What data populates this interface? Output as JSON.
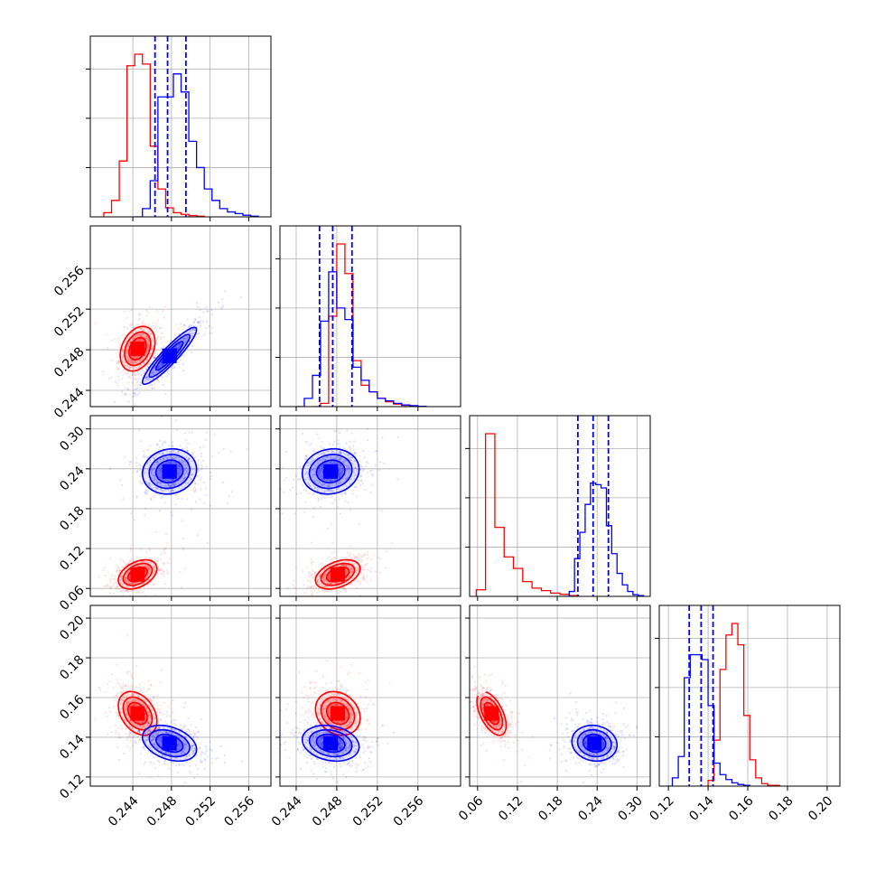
{
  "colors": {
    "red": "#ff0000",
    "blue": "#0000ff",
    "grid": "#b0b0b0",
    "axis": "#000000"
  },
  "chart_data": {
    "type": "corner",
    "grid": true,
    "series": [
      {
        "color": "#ff0000",
        "p0": {
          "hist": [
            [
              0.241,
              0.025
            ],
            [
              0.2418,
              0.1
            ],
            [
              0.2426,
              0.34
            ],
            [
              0.2434,
              0.92
            ],
            [
              0.2442,
              0.99
            ],
            [
              0.245,
              0.93
            ],
            [
              0.2458,
              0.43
            ],
            [
              0.2466,
              0.17
            ],
            [
              0.2474,
              0.055
            ],
            [
              0.2482,
              0.025
            ],
            [
              0.249,
              0.015
            ],
            [
              0.2498,
              0.008
            ],
            [
              0.2506,
              0.004
            ],
            [
              0.2514,
              0.0
            ]
          ]
        },
        "p1": {
          "hist": [
            [
              0.2456,
              0.0
            ],
            [
              0.2464,
              0.02
            ],
            [
              0.2472,
              0.55
            ],
            [
              0.248,
              0.99
            ],
            [
              0.2488,
              0.81
            ],
            [
              0.2496,
              0.28
            ],
            [
              0.2504,
              0.13
            ],
            [
              0.2512,
              0.09
            ],
            [
              0.252,
              0.05
            ],
            [
              0.2528,
              0.03
            ],
            [
              0.2536,
              0.015
            ],
            [
              0.2544,
              0.008
            ],
            [
              0.2552,
              0.005
            ],
            [
              0.256,
              0.002
            ],
            [
              0.2568,
              0.0
            ]
          ]
        },
        "p2": {
          "hist": [
            [
              0.058,
              0.04
            ],
            [
              0.072,
              0.99
            ],
            [
              0.086,
              0.42
            ],
            [
              0.1,
              0.24
            ],
            [
              0.114,
              0.17
            ],
            [
              0.128,
              0.09
            ],
            [
              0.142,
              0.05
            ],
            [
              0.156,
              0.035
            ],
            [
              0.17,
              0.02
            ],
            [
              0.184,
              0.012
            ],
            [
              0.198,
              0.005
            ],
            [
              0.212,
              0.0
            ]
          ]
        },
        "p3": {
          "hist": [
            [
              0.14,
              0.035
            ],
            [
              0.143,
              0.28
            ],
            [
              0.146,
              0.71
            ],
            [
              0.149,
              0.92
            ],
            [
              0.152,
              0.99
            ],
            [
              0.155,
              0.86
            ],
            [
              0.158,
              0.43
            ],
            [
              0.161,
              0.16
            ],
            [
              0.164,
              0.05
            ],
            [
              0.167,
              0.015
            ],
            [
              0.17,
              0.005
            ],
            [
              0.176,
              0.0
            ]
          ]
        },
        "cov": {
          "p0p1": [
            0.2445,
            0.2481,
            0.0009,
            0.0011,
            0.3
          ],
          "p0p2": [
            0.2445,
            0.081,
            0.001,
            0.011,
            0.4
          ],
          "p1p2": [
            0.2481,
            0.081,
            0.0011,
            0.011,
            0.4
          ],
          "p0p3": [
            0.2445,
            0.152,
            0.001,
            0.0055,
            -0.35
          ],
          "p1p3": [
            0.2481,
            0.152,
            0.0011,
            0.0055,
            -0.2
          ],
          "p2p3": [
            0.081,
            0.152,
            0.011,
            0.0055,
            -0.55
          ]
        }
      },
      {
        "color": "#0000ff",
        "p0": {
          "hist": [
            [
              0.2442,
              0.0
            ],
            [
              0.245,
              0.05
            ],
            [
              0.2458,
              0.22
            ],
            [
              0.2466,
              0.73
            ],
            [
              0.2474,
              0.73
            ],
            [
              0.2482,
              0.87
            ],
            [
              0.249,
              0.76
            ],
            [
              0.2498,
              0.46
            ],
            [
              0.2506,
              0.3
            ],
            [
              0.2514,
              0.17
            ],
            [
              0.2522,
              0.1
            ],
            [
              0.253,
              0.05
            ],
            [
              0.2538,
              0.03
            ],
            [
              0.2546,
              0.02
            ],
            [
              0.2554,
              0.01
            ],
            [
              0.2562,
              0.004
            ],
            [
              0.257,
              0.0
            ]
          ]
        },
        "p1": {
          "hist": [
            [
              0.244,
              0.0
            ],
            [
              0.2448,
              0.05
            ],
            [
              0.2456,
              0.19
            ],
            [
              0.2464,
              0.52
            ],
            [
              0.2472,
              0.82
            ],
            [
              0.248,
              0.6
            ],
            [
              0.2488,
              0.53
            ],
            [
              0.2496,
              0.24
            ],
            [
              0.2504,
              0.16
            ],
            [
              0.2512,
              0.09
            ],
            [
              0.252,
              0.05
            ],
            [
              0.2528,
              0.035
            ],
            [
              0.2536,
              0.02
            ],
            [
              0.2544,
              0.01
            ],
            [
              0.2552,
              0.006
            ],
            [
              0.256,
              0.002
            ],
            [
              0.2568,
              0.0
            ]
          ]
        },
        "p2": {
          "hist": [
            [
              0.19,
              0.0
            ],
            [
              0.198,
              0.03
            ],
            [
              0.206,
              0.23
            ],
            [
              0.214,
              0.39
            ],
            [
              0.222,
              0.56
            ],
            [
              0.23,
              0.69
            ],
            [
              0.238,
              0.68
            ],
            [
              0.246,
              0.66
            ],
            [
              0.254,
              0.43
            ],
            [
              0.262,
              0.26
            ],
            [
              0.27,
              0.14
            ],
            [
              0.278,
              0.07
            ],
            [
              0.286,
              0.03
            ],
            [
              0.294,
              0.01
            ],
            [
              0.302,
              0.005
            ],
            [
              0.31,
              0.0
            ]
          ]
        },
        "p3": {
          "hist": [
            [
              0.119,
              0.0
            ],
            [
              0.122,
              0.05
            ],
            [
              0.125,
              0.18
            ],
            [
              0.128,
              0.66
            ],
            [
              0.131,
              0.8
            ],
            [
              0.134,
              0.8
            ],
            [
              0.137,
              0.77
            ],
            [
              0.14,
              0.49
            ],
            [
              0.143,
              0.14
            ],
            [
              0.146,
              0.07
            ],
            [
              0.149,
              0.04
            ],
            [
              0.152,
              0.02
            ],
            [
              0.155,
              0.01
            ],
            [
              0.158,
              0.005
            ],
            [
              0.161,
              0.0
            ]
          ]
        },
        "cov": {
          "p0p1": [
            0.2478,
            0.2474,
            0.0014,
            0.0014,
            0.92
          ],
          "p0p2": [
            0.2478,
            0.236,
            0.0014,
            0.017,
            0.1
          ],
          "p1p2": [
            0.2474,
            0.236,
            0.0014,
            0.017,
            0.1
          ],
          "p0p3": [
            0.2478,
            0.137,
            0.0014,
            0.0045,
            -0.35
          ],
          "p1p3": [
            0.2474,
            0.137,
            0.0014,
            0.0045,
            -0.2
          ],
          "p2p3": [
            0.236,
            0.137,
            0.017,
            0.0045,
            -0.1
          ]
        }
      }
    ],
    "quantiles": [
      [
        0.2463,
        0.2476,
        0.2495
      ],
      [
        0.2463,
        0.2476,
        0.2495
      ],
      [
        0.211,
        0.234,
        0.257
      ],
      [
        0.1305,
        0.1365,
        0.1425
      ]
    ],
    "axes": [
      {
        "lim": [
          0.2396,
          0.2583
        ],
        "ticks": [
          0.244,
          0.248,
          0.252,
          0.256
        ],
        "labels": [
          "0.244",
          "0.248",
          "0.252",
          "0.256"
        ]
      },
      {
        "lim": [
          0.2424,
          0.2602
        ],
        "ticks": [
          0.244,
          0.248,
          0.252,
          0.256
        ],
        "labels": [
          "0.244",
          "0.248",
          "0.252",
          "0.256"
        ]
      },
      {
        "lim": [
          0.048,
          0.32
        ],
        "ticks": [
          0.06,
          0.12,
          0.18,
          0.24,
          0.3
        ],
        "labels": [
          "0.06",
          "0.12",
          "0.18",
          "0.24",
          "0.30"
        ]
      },
      {
        "lim": [
          0.1154,
          0.2064
        ],
        "ticks": [
          0.12,
          0.14,
          0.16,
          0.18,
          0.2
        ],
        "labels": [
          "0.12",
          "0.14",
          "0.16",
          "0.18",
          "0.20"
        ]
      }
    ],
    "hist_ylim": [
      0,
      1.1
    ],
    "hist_yticks": [
      0.3,
      0.6,
      0.9
    ]
  }
}
